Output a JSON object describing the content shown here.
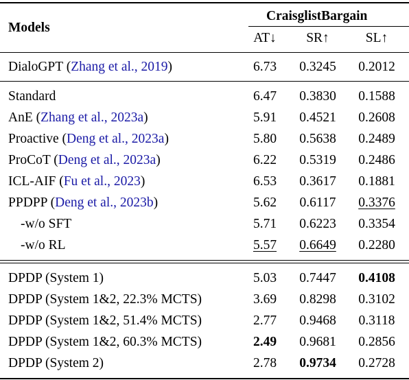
{
  "header": {
    "models_label": "Models",
    "dataset_label": "CraisglistBargain",
    "columns": [
      "AT↓",
      "SR↑",
      "SL↑"
    ]
  },
  "groups": [
    {
      "rows": [
        {
          "model": "DialoGPT",
          "cite": "Zhang et al., 2019",
          "at": "6.73",
          "sr": "0.3245",
          "sl": "0.2012"
        }
      ]
    },
    {
      "rows": [
        {
          "model": "Standard",
          "cite": "",
          "at": "6.47",
          "sr": "0.3830",
          "sl": "0.1588"
        },
        {
          "model": "AnE",
          "cite": "Zhang et al., 2023a",
          "at": "5.91",
          "sr": "0.4521",
          "sl": "0.2608"
        },
        {
          "model": "Proactive",
          "cite": "Deng et al., 2023a",
          "at": "5.80",
          "sr": "0.5638",
          "sl": "0.2489"
        },
        {
          "model": "ProCoT",
          "cite": "Deng et al., 2023a",
          "at": "6.22",
          "sr": "0.5319",
          "sl": "0.2486"
        },
        {
          "model": "ICL-AIF",
          "cite": "Fu et al., 2023",
          "at": "6.53",
          "sr": "0.3617",
          "sl": "0.1881"
        },
        {
          "model": "PPDPP",
          "cite": "Deng et al., 2023b",
          "at": "5.62",
          "sr": "0.6117",
          "sl": "0.3376",
          "sl_style": "ul"
        },
        {
          "model": "-w/o SFT",
          "cite": "",
          "indent": true,
          "at": "5.71",
          "sr": "0.6223",
          "sl": "0.3354"
        },
        {
          "model": "-w/o RL",
          "cite": "",
          "indent": true,
          "at": "5.57",
          "at_style": "ul",
          "sr": "0.6649",
          "sr_style": "ul",
          "sl": "0.2280"
        }
      ]
    },
    {
      "rows": [
        {
          "model": "DPDP (System 1)",
          "cite": "",
          "at": "5.03",
          "sr": "0.7447",
          "sl": "0.4108",
          "sl_style": "bold"
        },
        {
          "model": "DPDP (System 1&2, 22.3% MCTS)",
          "cite": "",
          "at": "3.69",
          "sr": "0.8298",
          "sl": "0.3102"
        },
        {
          "model": "DPDP (System 1&2, 51.4% MCTS)",
          "cite": "",
          "at": "2.77",
          "sr": "0.9468",
          "sl": "0.3118"
        },
        {
          "model": "DPDP (System 1&2, 60.3% MCTS)",
          "cite": "",
          "at": "2.49",
          "at_style": "bold",
          "sr": "0.9681",
          "sl": "0.2856"
        },
        {
          "model": "DPDP (System 2)",
          "cite": "",
          "at": "2.78",
          "sr": "0.9734",
          "sr_style": "bold",
          "sl": "0.2728"
        }
      ]
    }
  ]
}
